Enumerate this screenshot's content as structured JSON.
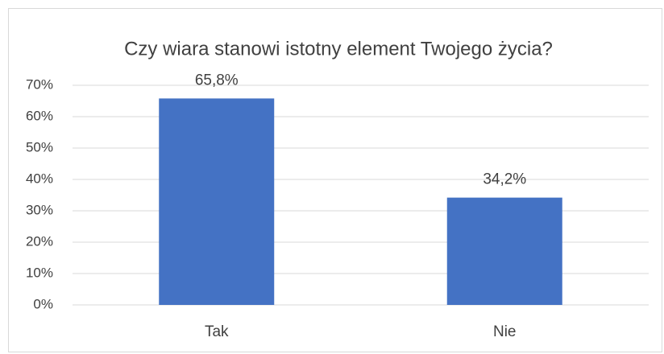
{
  "chart_data": {
    "type": "bar",
    "title": "Czy wiara stanowi istotny element Twojego życia?",
    "categories": [
      "Tak",
      "Nie"
    ],
    "values": [
      65.8,
      34.2
    ],
    "value_labels": [
      "65,8%",
      "34,2%"
    ],
    "color": "#4472c4",
    "ylim": [
      0,
      70
    ],
    "yticks": [
      {
        "value": 0,
        "label": "0%"
      },
      {
        "value": 10,
        "label": "10%"
      },
      {
        "value": 20,
        "label": "20%"
      },
      {
        "value": 30,
        "label": "30%"
      },
      {
        "value": 40,
        "label": "40%"
      },
      {
        "value": 50,
        "label": "50%"
      },
      {
        "value": 60,
        "label": "60%"
      },
      {
        "value": 70,
        "label": "70%"
      }
    ],
    "grid": true
  }
}
